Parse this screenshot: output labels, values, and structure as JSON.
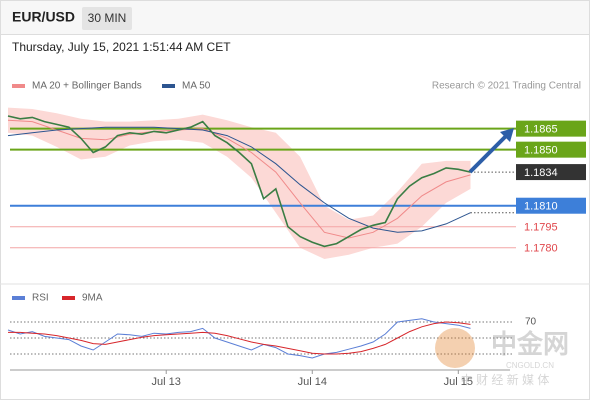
{
  "header": {
    "symbol": "EUR/USD",
    "period": "30 MIN",
    "datetime": "Thursday, July 15, 2021 1:51:44 AM CET",
    "credit": "Research © 2021 Trading Central"
  },
  "watermark": {
    "name": "中金网",
    "site": "CNGOLD.CN",
    "tagline": "中 财 经 新 媒 体"
  },
  "chart_data": [
    {
      "type": "line",
      "color": "#3a7d44",
      "x": [
        0,
        2,
        4,
        6,
        8,
        10,
        12,
        14,
        16,
        18,
        20,
        22,
        24,
        26,
        28,
        30,
        32,
        34,
        36,
        38,
        40,
        42,
        44,
        46,
        48,
        50,
        52,
        54,
        56,
        58,
        60,
        62,
        64,
        66,
        68,
        70,
        72,
        74,
        76
      ],
      "values": [
        1.1874,
        1.1872,
        1.1873,
        1.187,
        1.1868,
        1.1866,
        1.1858,
        1.1848,
        1.1852,
        1.186,
        1.1862,
        1.1861,
        1.1863,
        1.1862,
        1.1864,
        1.1866,
        1.187,
        1.186,
        1.1855,
        1.1848,
        1.184,
        1.1815,
        1.1822,
        1.1795,
        1.1788,
        1.1784,
        1.1781,
        1.1783,
        1.1788,
        1.1793,
        1.1796,
        1.1798,
        1.1815,
        1.1824,
        1.183,
        1.1833,
        1.1837,
        1.1836,
        1.1834
      ],
      "xlim": [
        0,
        82
      ],
      "ylim": [
        1.1757,
        1.1889
      ],
      "series": [
        {
          "name": "MA 20 + Bollinger Bands",
          "color": "#f08a8a",
          "band_color": "#fcd9d6",
          "x": [
            0,
            4,
            8,
            12,
            16,
            20,
            24,
            28,
            32,
            36,
            40,
            44,
            48,
            52,
            56,
            60,
            64,
            68,
            72,
            76
          ],
          "values": [
            1.1871,
            1.187,
            1.1864,
            1.1858,
            1.1857,
            1.1861,
            1.1863,
            1.1864,
            1.1865,
            1.1858,
            1.1848,
            1.1834,
            1.1812,
            1.1791,
            1.1787,
            1.1791,
            1.1801,
            1.1817,
            1.1827,
            1.1832
          ],
          "upper": [
            1.188,
            1.1879,
            1.1876,
            1.1872,
            1.187,
            1.187,
            1.1871,
            1.1872,
            1.1875,
            1.1871,
            1.1866,
            1.1862,
            1.1845,
            1.181,
            1.18,
            1.1803,
            1.182,
            1.184,
            1.1842,
            1.1842
          ],
          "lower": [
            1.1862,
            1.186,
            1.1852,
            1.1843,
            1.1845,
            1.1853,
            1.1856,
            1.1857,
            1.1855,
            1.1845,
            1.183,
            1.1805,
            1.178,
            1.1772,
            1.1775,
            1.178,
            1.1783,
            1.1795,
            1.1812,
            1.1822
          ]
        },
        {
          "name": "MA 50",
          "color": "#2d5590",
          "x": [
            0,
            4,
            8,
            12,
            16,
            20,
            24,
            28,
            32,
            36,
            40,
            44,
            48,
            52,
            56,
            60,
            64,
            68,
            72,
            76
          ],
          "values": [
            1.186,
            1.1862,
            1.1864,
            1.1865,
            1.1866,
            1.1866,
            1.1866,
            1.1865,
            1.1864,
            1.186,
            1.1852,
            1.184,
            1.1825,
            1.1812,
            1.1801,
            1.1794,
            1.1791,
            1.1792,
            1.1797,
            1.1805
          ]
        }
      ],
      "levels": [
        {
          "value": 1.1865,
          "label": "1.1865",
          "color": "#6aa519",
          "style": "box"
        },
        {
          "value": 1.185,
          "label": "1.1850",
          "color": "#6aa519",
          "style": "box"
        },
        {
          "value": 1.1834,
          "label": "1.1834",
          "color": "#333333",
          "style": "current"
        },
        {
          "value": 1.181,
          "label": "1.1810",
          "color": "#3d7fd9",
          "style": "box"
        },
        {
          "value": 1.1795,
          "label": "1.1795",
          "color": "#e0474c",
          "style": "text"
        },
        {
          "value": 1.178,
          "label": "1.1780",
          "color": "#e0474c",
          "style": "text"
        }
      ]
    },
    {
      "type": "line",
      "x": [
        0,
        2,
        4,
        6,
        8,
        10,
        12,
        14,
        16,
        18,
        20,
        22,
        24,
        26,
        28,
        30,
        32,
        34,
        36,
        38,
        40,
        42,
        44,
        46,
        48,
        50,
        52,
        54,
        56,
        58,
        60,
        62,
        64,
        66,
        68,
        70,
        72,
        74,
        76
      ],
      "xlim": [
        0,
        82
      ],
      "ylim": [
        10,
        110
      ],
      "yticks": [
        70
      ],
      "ref_lines": [
        70,
        50,
        30
      ],
      "xticks": [
        {
          "value": 26,
          "label": "Jul 13"
        },
        {
          "value": 50,
          "label": "Jul 14"
        },
        {
          "value": 74,
          "label": "Jul 15"
        }
      ],
      "series": [
        {
          "name": "RSI",
          "color": "#5b7fd6",
          "values": [
            60,
            55,
            58,
            52,
            50,
            48,
            40,
            35,
            45,
            55,
            54,
            52,
            56,
            55,
            57,
            58,
            62,
            50,
            45,
            40,
            35,
            42,
            38,
            30,
            28,
            25,
            30,
            32,
            36,
            40,
            45,
            55,
            70,
            72,
            74,
            70,
            68,
            66,
            62
          ]
        },
        {
          "name": "9MA",
          "color": "#d7262b",
          "values": [
            57,
            57,
            56,
            55,
            53,
            50,
            47,
            43,
            42,
            45,
            48,
            51,
            53,
            54,
            55,
            56,
            57,
            56,
            53,
            49,
            45,
            42,
            40,
            37,
            34,
            31,
            30,
            30,
            31,
            33,
            37,
            42,
            50,
            58,
            64,
            68,
            70,
            69,
            67
          ]
        }
      ]
    }
  ]
}
